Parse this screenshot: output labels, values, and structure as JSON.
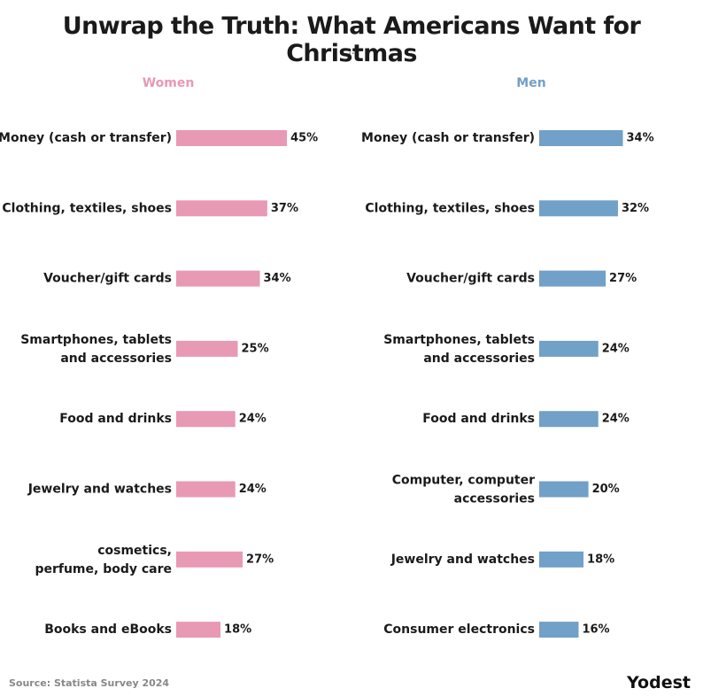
{
  "title": "Unwrap the Truth: What Americans Want for Christmas",
  "subtitle": "..",
  "source": "Source: Statista Survey 2024",
  "logo": "Yodest",
  "colors": {
    "women": "#e899b3",
    "men": "#71a0c8"
  },
  "chart_data": [
    {
      "type": "bar",
      "orientation": "horizontal",
      "title": "Women",
      "categories": [
        "Money (cash or transfer)",
        "Clothing, textiles, shoes",
        "Voucher/gift cards",
        "Smartphones, tablets and accessories",
        "Food and drinks",
        "Jewelry and watches",
        "cosmetics, perfume, body care",
        "Books and eBooks"
      ],
      "values": [
        45,
        37,
        34,
        25,
        24,
        24,
        27,
        18
      ],
      "value_labels": [
        "45%",
        "37%",
        "34%",
        "25%",
        "24%",
        "24%",
        "27%",
        "18%"
      ],
      "unit": "%",
      "xlim": [
        0,
        45
      ],
      "grid": false
    },
    {
      "type": "bar",
      "orientation": "horizontal",
      "title": "Men",
      "categories": [
        "Money (cash or transfer)",
        "Clothing, textiles, shoes",
        "Voucher/gift cards",
        "Smartphones, tablets and accessories",
        "Food and drinks",
        "Computer, computer accessories",
        "Jewelry and watches",
        "Consumer electronics"
      ],
      "values": [
        34,
        32,
        27,
        24,
        24,
        20,
        18,
        16
      ],
      "value_labels": [
        "34%",
        "32%",
        "27%",
        "24%",
        "24%",
        "20%",
        "18%",
        "16%"
      ],
      "unit": "%",
      "xlim": [
        0,
        45
      ],
      "grid": false
    }
  ]
}
